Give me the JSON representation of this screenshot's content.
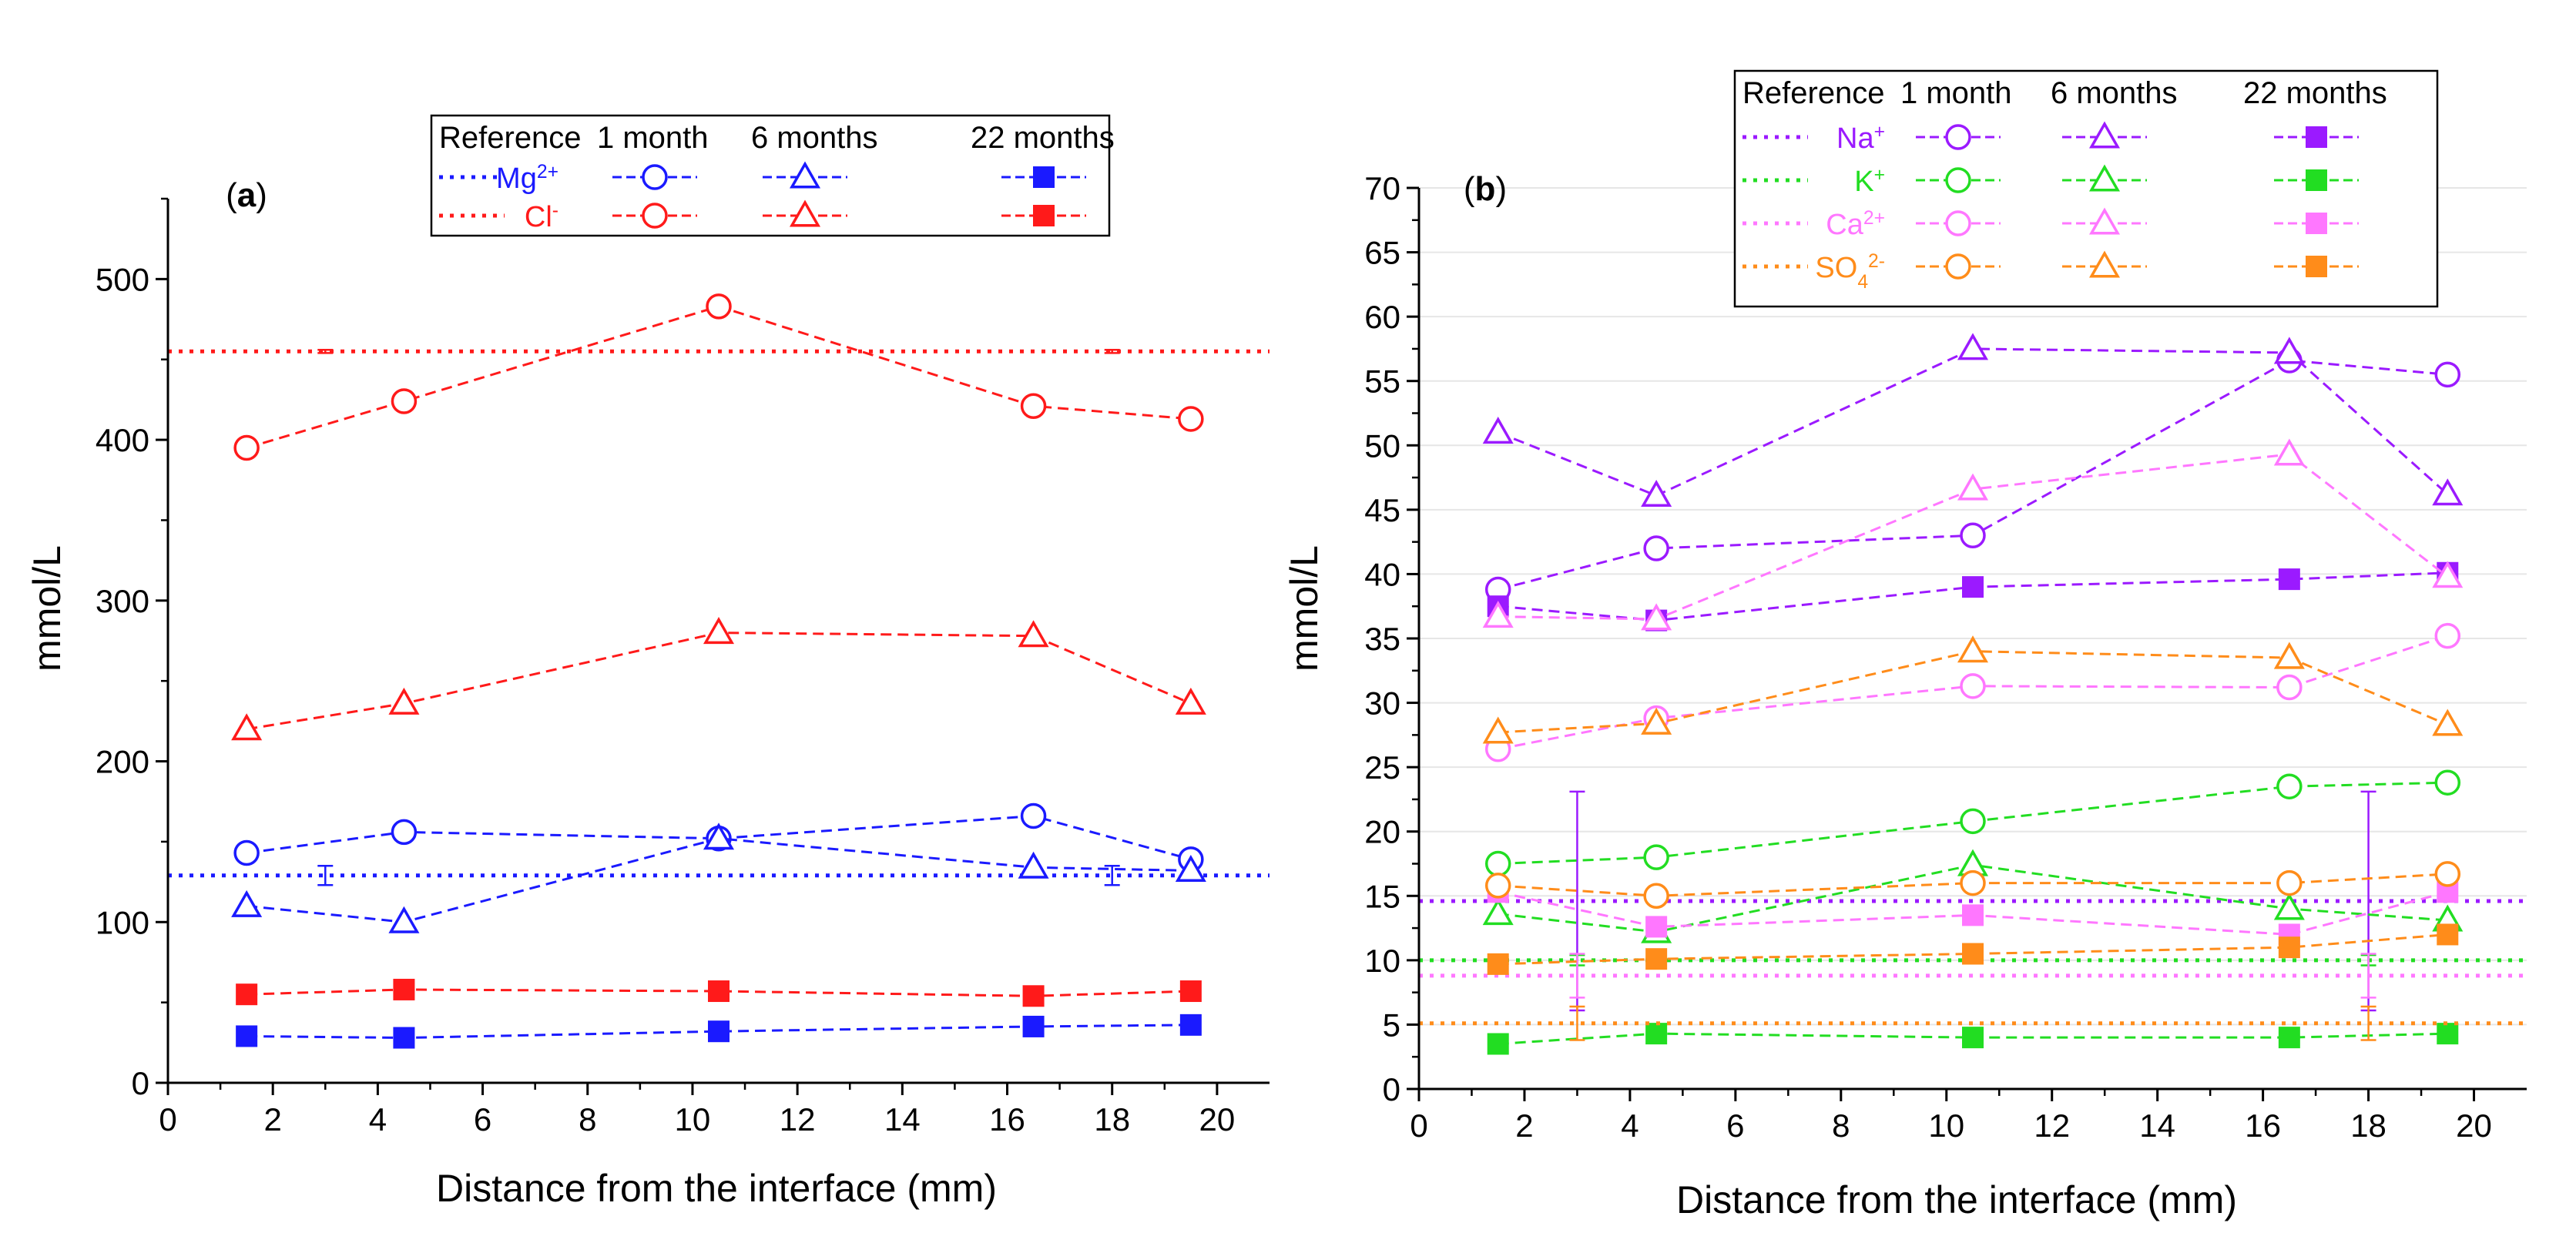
{
  "chart_data": [
    {
      "id": "a",
      "type": "line",
      "panel_label": "a",
      "title": "",
      "xlabel": "Distance from the interface (mm)",
      "ylabel": "mmol/L",
      "xlim": [
        0,
        21
      ],
      "ylim": [
        0,
        550
      ],
      "xticks": [
        0,
        2,
        4,
        6,
        8,
        10,
        12,
        14,
        16,
        18,
        20
      ],
      "yticks": [
        0,
        100,
        200,
        300,
        400,
        500
      ],
      "legend_header": [
        "Reference",
        "1 month",
        "6 months",
        "22 months"
      ],
      "x": [
        1.5,
        4.5,
        10.5,
        16.5,
        19.5
      ],
      "ions": [
        {
          "key": "mg",
          "label": "Mg",
          "sup": "2+",
          "sub": "",
          "sup2": "",
          "color": "#1a1aff",
          "reference": 129,
          "ref_error": [
            {
              "x": 3,
              "err": 6
            },
            {
              "x": 18,
              "err": 6
            }
          ],
          "month_1": [
            143,
            156,
            152,
            166,
            139
          ],
          "months_6": [
            110,
            100,
            152,
            134,
            132
          ],
          "months_22": [
            29,
            28,
            32,
            35,
            36
          ]
        },
        {
          "key": "cl",
          "label": "Cl",
          "sup": "-",
          "sub": "",
          "sup2": "",
          "color": "#ff1a1a",
          "reference": 455,
          "ref_error": [
            {
              "x": 3,
              "err": 1
            },
            {
              "x": 18,
              "err": 1
            }
          ],
          "month_1": [
            395,
            424,
            483,
            421,
            413
          ],
          "months_6": [
            220,
            236,
            280,
            278,
            236
          ],
          "months_22": [
            55,
            58,
            57,
            54,
            57
          ]
        }
      ]
    },
    {
      "id": "b",
      "type": "line",
      "panel_label": "b",
      "title": "",
      "xlabel": "Distance from the interface (mm)",
      "ylabel": "mmol/L",
      "xlim": [
        0,
        21
      ],
      "ylim": [
        0,
        70
      ],
      "xticks": [
        0,
        2,
        4,
        6,
        8,
        10,
        12,
        14,
        16,
        18,
        20
      ],
      "yticks": [
        0,
        5,
        10,
        15,
        20,
        25,
        30,
        35,
        40,
        45,
        50,
        55,
        60,
        65,
        70
      ],
      "legend_header": [
        "Reference",
        "1 month",
        "6 months",
        "22 months"
      ],
      "x": [
        1.5,
        4.5,
        10.5,
        16.5,
        19.5
      ],
      "ions": [
        {
          "key": "na",
          "label": "Na",
          "sup": "+",
          "sub": "",
          "sup2": "",
          "color": "#9b1aff",
          "reference": 14.6,
          "ref_error": [
            {
              "x": 3,
              "err": 8.5
            },
            {
              "x": 18,
              "err": 8.5
            }
          ],
          "month_1": [
            38.8,
            42.0,
            43.0,
            56.6,
            55.5
          ],
          "months_6": [
            51.0,
            46.1,
            57.5,
            57.2,
            46.2
          ],
          "months_22": [
            37.5,
            36.4,
            39.0,
            39.6,
            40.1
          ]
        },
        {
          "key": "k",
          "label": "K",
          "sup": "+",
          "sub": "",
          "sup2": "",
          "color": "#22dd22",
          "reference": 10.0,
          "ref_error": [
            {
              "x": 3,
              "err": 0.4
            },
            {
              "x": 18,
              "err": 0.4
            }
          ],
          "month_1": [
            17.5,
            18.0,
            20.8,
            23.5,
            23.8
          ],
          "months_6": [
            13.6,
            12.2,
            17.4,
            14.0,
            13.1
          ],
          "months_22": [
            3.5,
            4.3,
            4.0,
            4.0,
            4.3
          ]
        },
        {
          "key": "ca",
          "label": "Ca",
          "sup": "2+",
          "sub": "",
          "sup2": "",
          "color": "#ff77ff",
          "reference": 8.8,
          "ref_error": [
            {
              "x": 3,
              "err": 1.7
            },
            {
              "x": 18,
              "err": 1.7
            }
          ],
          "month_1": [
            26.4,
            28.8,
            31.3,
            31.2,
            35.2
          ],
          "months_6": [
            36.7,
            36.5,
            46.6,
            49.3,
            39.8
          ],
          "months_22": [
            15.3,
            12.6,
            13.5,
            12.0,
            15.3
          ]
        },
        {
          "key": "so4",
          "label": "SO",
          "sup": "",
          "sub": "4",
          "sup2": "2-",
          "color": "#ff8c1a",
          "reference": 5.1,
          "ref_error": [
            {
              "x": 3,
              "err": 1.3
            },
            {
              "x": 18,
              "err": 1.3
            }
          ],
          "month_1": [
            15.8,
            15.0,
            16.0,
            16.0,
            16.7
          ],
          "months_6": [
            27.7,
            28.4,
            34.0,
            33.5,
            28.3
          ],
          "months_22": [
            9.7,
            10.1,
            10.5,
            11.0,
            12.0
          ]
        }
      ]
    }
  ]
}
